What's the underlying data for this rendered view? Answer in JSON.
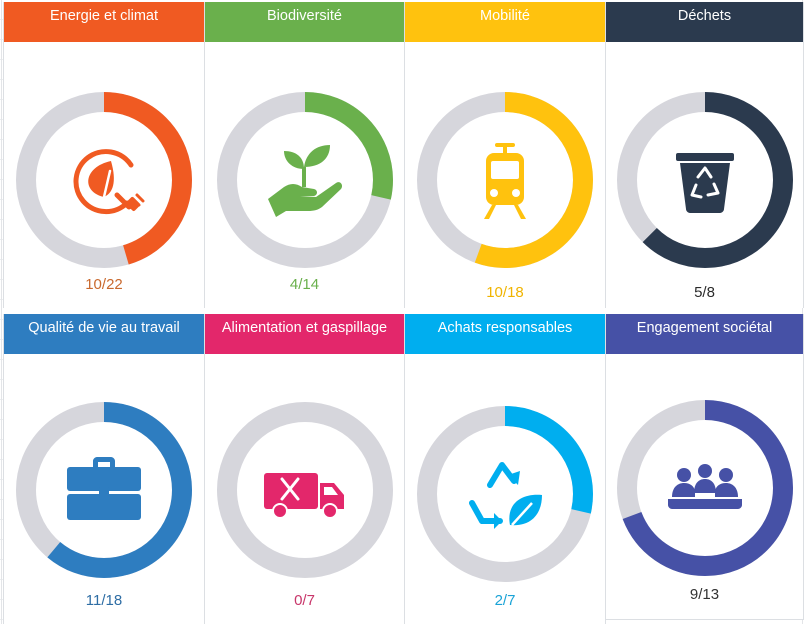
{
  "cards": [
    {
      "title": "Energie et climat",
      "score": "10/22",
      "fraction": 0.4545,
      "color": "#f05a22",
      "score_color": "#c9692e",
      "icon": "energy-leaf-plug-icon"
    },
    {
      "title": "Biodiversité",
      "score": "4/14",
      "fraction": 0.2857,
      "color": "#6ab04c",
      "score_color": "#6ab04c",
      "icon": "plant-hand-icon"
    },
    {
      "title": "Mobilité",
      "score": "10/18",
      "fraction": 0.5556,
      "color": "#ffc20e",
      "score_color": "#f0b400",
      "icon": "tram-icon"
    },
    {
      "title": "Déchets",
      "score": "5/8",
      "fraction": 0.625,
      "color": "#2b3a4e",
      "score_color": "#2b2b2b",
      "icon": "recycle-bin-icon"
    },
    {
      "title": "Qualité de vie au travail",
      "score": "11/18",
      "fraction": 0.6111,
      "color": "#2e7dc0",
      "score_color": "#2e6da4",
      "icon": "briefcase-icon"
    },
    {
      "title": "Alimentation et gaspillage",
      "score": "0/7",
      "fraction": 0,
      "color": "#e3276b",
      "score_color": "#c8366a",
      "icon": "food-truck-icon"
    },
    {
      "title": "Achats responsables",
      "score": "2/7",
      "fraction": 0.2857,
      "color": "#00aeef",
      "score_color": "#1aa3d6",
      "icon": "recycle-leaf-icon"
    },
    {
      "title": "Engagement sociétal",
      "score": "9/13",
      "fraction": 0.6923,
      "color": "#4651a6",
      "score_color": "#333333",
      "icon": "people-meeting-icon"
    }
  ]
}
